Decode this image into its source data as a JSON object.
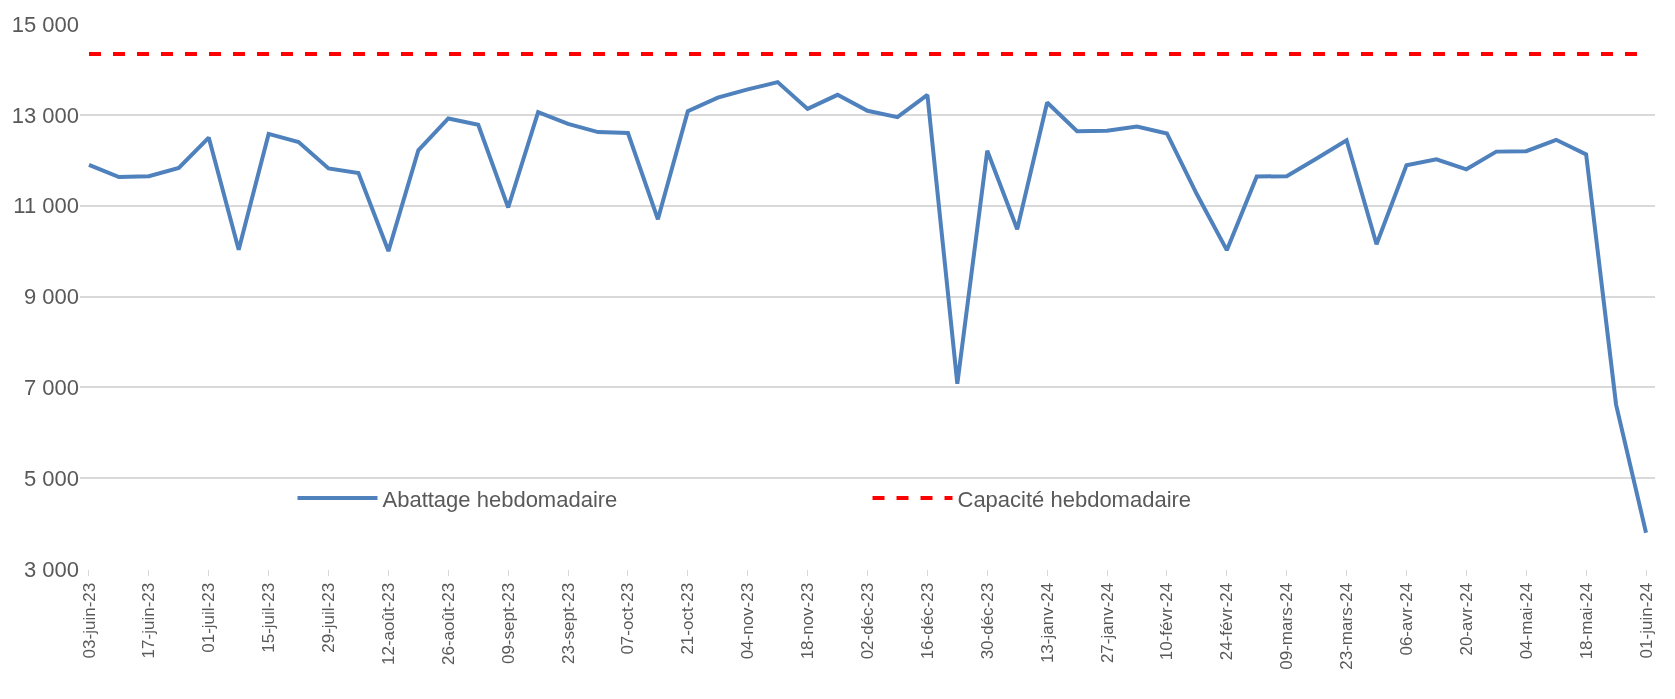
{
  "chart_data": {
    "type": "line",
    "categories": [
      "03-juin-23",
      null,
      "17-juin-23",
      null,
      "01-juil-23",
      null,
      "15-juil-23",
      null,
      "29-juil-23",
      null,
      "12-août-23",
      null,
      "26-août-23",
      null,
      "09-sept-23",
      null,
      "23-sept-23",
      null,
      "07-oct-23",
      null,
      "21-oct-23",
      null,
      "04-nov-23",
      null,
      "18-nov-23",
      null,
      "02-déc-23",
      null,
      "16-déc-23",
      null,
      "30-déc-23",
      null,
      "13-janv-24",
      null,
      "27-janv-24",
      null,
      "10-févr-24",
      null,
      "24-févr-24",
      null,
      "09-mars-24",
      null,
      "23-mars-24",
      null,
      "06-avr-24",
      null,
      "20-avr-24",
      null,
      "04-mai-24",
      null,
      "18-mai-24",
      null,
      "01-juin-24"
    ],
    "series": [
      {
        "name": "Abattage hebdomadaire",
        "color": "#4f81bd",
        "line_style": "solid",
        "values": [
          11900,
          11630,
          11650,
          11830,
          12500,
          10030,
          12580,
          12400,
          11820,
          11720,
          10000,
          12220,
          12920,
          12780,
          10960,
          13060,
          12800,
          12620,
          12600,
          10700,
          13080,
          13380,
          13560,
          13720,
          13130,
          13440,
          13090,
          12950,
          13440,
          7080,
          12210,
          10480,
          13270,
          12640,
          12650,
          12740,
          12590,
          11250,
          10020,
          11640,
          11650,
          12040,
          12440,
          10150,
          11890,
          12020,
          11800,
          12190,
          12200,
          12450,
          12130,
          6620,
          3800
        ]
      }
    ],
    "ref_lines": [
      {
        "axis": "y",
        "value": 14340,
        "label": "Capacité hebdomadaire",
        "color": "#ff0000",
        "line_style": "dashed"
      }
    ],
    "ylim": [
      3000,
      15000
    ],
    "yticks": [
      {
        "value": 3000,
        "label": "3 000"
      },
      {
        "value": 5000,
        "label": "5 000"
      },
      {
        "value": 7000,
        "label": "7 000"
      },
      {
        "value": 9000,
        "label": "9 000"
      },
      {
        "value": 11000,
        "label": "11 000"
      },
      {
        "value": 13000,
        "label": "13 000"
      },
      {
        "value": 15000,
        "label": "15 000"
      }
    ],
    "grid": "y",
    "legend": "bottom",
    "marker": "none"
  }
}
